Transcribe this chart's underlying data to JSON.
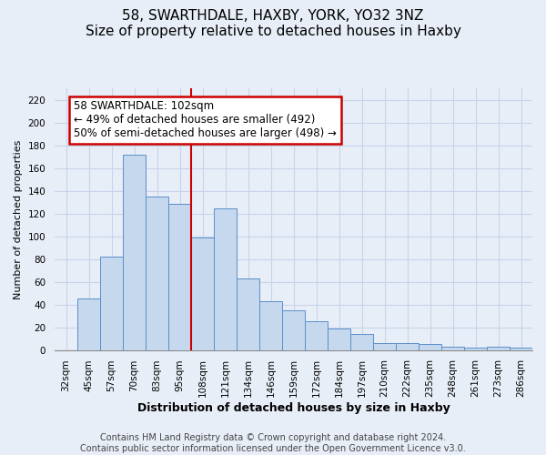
{
  "title": "58, SWARTHDALE, HAXBY, YORK, YO32 3NZ",
  "subtitle": "Size of property relative to detached houses in Haxby",
  "xlabel": "Distribution of detached houses by size in Haxby",
  "ylabel": "Number of detached properties",
  "bar_labels": [
    "32sqm",
    "45sqm",
    "57sqm",
    "70sqm",
    "83sqm",
    "95sqm",
    "108sqm",
    "121sqm",
    "134sqm",
    "146sqm",
    "159sqm",
    "172sqm",
    "184sqm",
    "197sqm",
    "210sqm",
    "222sqm",
    "235sqm",
    "248sqm",
    "261sqm",
    "273sqm",
    "286sqm"
  ],
  "bar_values": [
    0,
    45,
    82,
    172,
    135,
    129,
    99,
    125,
    63,
    43,
    35,
    25,
    19,
    14,
    6,
    6,
    5,
    3,
    2,
    3,
    2
  ],
  "bar_color": "#c5d8ed",
  "bar_edge_color": "#5b8fc9",
  "ylim": [
    0,
    230
  ],
  "yticks": [
    0,
    20,
    40,
    60,
    80,
    100,
    120,
    140,
    160,
    180,
    200,
    220
  ],
  "property_line_index": 6,
  "property_line_color": "#cc0000",
  "annotation_title": "58 SWARTHDALE: 102sqm",
  "annotation_line1": "← 49% of detached houses are smaller (492)",
  "annotation_line2": "50% of semi-detached houses are larger (498) →",
  "annotation_box_color": "#cc0000",
  "footer1": "Contains HM Land Registry data © Crown copyright and database right 2024.",
  "footer2": "Contains public sector information licensed under the Open Government Licence v3.0.",
  "background_color": "#e8eef8",
  "plot_background_color": "#e8eef8",
  "grid_color": "#c8d4e8",
  "title_fontsize": 11,
  "subtitle_fontsize": 9.5,
  "xlabel_fontsize": 9,
  "ylabel_fontsize": 8,
  "footer_fontsize": 7,
  "tick_fontsize": 7.5,
  "annotation_fontsize": 8.5
}
